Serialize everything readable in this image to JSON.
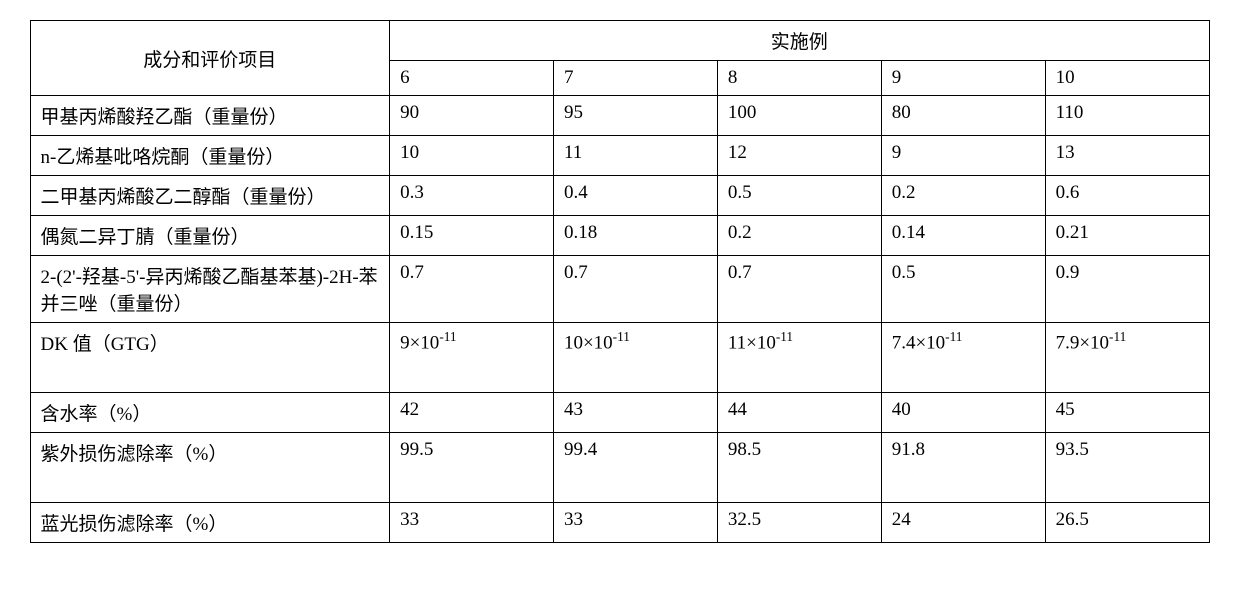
{
  "table": {
    "type": "table",
    "border_color": "#000000",
    "background_color": "#ffffff",
    "text_color": "#000000",
    "font_size": 19,
    "header": {
      "label_column": "成分和评价项目",
      "examples_label": "实施例",
      "columns": [
        "6",
        "7",
        "8",
        "9",
        "10"
      ]
    },
    "rows": [
      {
        "label": "甲基丙烯酸羟乙酯（重量份）",
        "values": [
          "90",
          "95",
          "100",
          "80",
          "110"
        ]
      },
      {
        "label": "n-乙烯基吡咯烷酮（重量份）",
        "values": [
          "10",
          "11",
          "12",
          "9",
          "13"
        ]
      },
      {
        "label": "二甲基丙烯酸乙二醇酯（重量份）",
        "values": [
          "0.3",
          "0.4",
          "0.5",
          "0.2",
          "0.6"
        ]
      },
      {
        "label": "偶氮二异丁腈（重量份）",
        "values": [
          "0.15",
          "0.18",
          "0.2",
          "0.14",
          "0.21"
        ]
      },
      {
        "label": "2-(2'-羟基-5'-异丙烯酸乙酯基苯基)-2H-苯并三唑（重量份）",
        "values": [
          "0.7",
          "0.7",
          "0.7",
          "0.5",
          "0.9"
        ]
      },
      {
        "label": "DK 值（GTG）",
        "values_html": [
          "9×10<sup>-11</sup>",
          "10×10<sup>-11</sup>",
          "11×10<sup>-11</sup>",
          "7.4×10<sup>-11</sup>",
          "7.9×10<sup>-11</sup>"
        ]
      },
      {
        "label": "含水率（%）",
        "values": [
          "42",
          "43",
          "44",
          "40",
          "45"
        ]
      },
      {
        "label": "紫外损伤滤除率（%）",
        "values": [
          "99.5",
          "99.4",
          "98.5",
          "91.8",
          "93.5"
        ]
      },
      {
        "label": "蓝光损伤滤除率（%）",
        "values": [
          "33",
          "33",
          "32.5",
          "24",
          "26.5"
        ]
      }
    ],
    "column_widths": {
      "label": 360,
      "data": 164
    }
  }
}
